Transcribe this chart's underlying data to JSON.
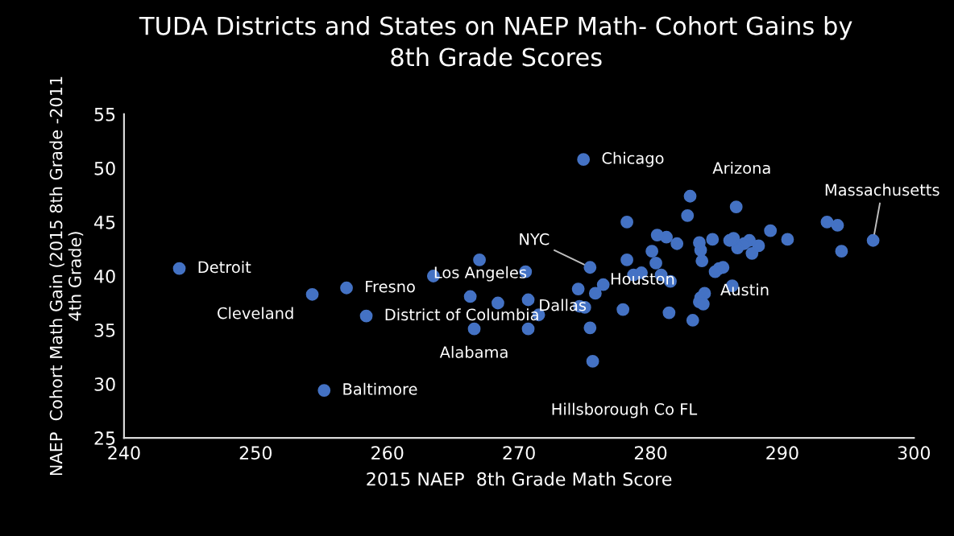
{
  "chart_data": {
    "type": "scatter",
    "title": "TUDA Districts and States on NAEP Math- Cohort Gains by\n8th Grade Scores",
    "xlabel": "2015 NAEP  8th Grade Math Score",
    "ylabel": "NAEP  Cohort Math Gain (2015 8th Grade -2011\n4th Grade)",
    "xlim": [
      240,
      300
    ],
    "xticks": [
      240,
      250,
      260,
      270,
      280,
      290,
      300
    ],
    "ylim": [
      25,
      55
    ],
    "yticks": [
      25,
      30,
      35,
      40,
      45,
      50,
      55
    ],
    "grid": false,
    "marker": "circle",
    "series": [
      {
        "color": "#4472c4",
        "x": [
          244.2,
          254.3,
          256.9,
          258.4,
          255.2,
          263.5,
          267.0,
          266.3,
          268.4,
          266.6,
          270.5,
          270.7,
          270.7,
          274.9,
          283.0,
          286.5,
          282.8,
          278.2,
          293.4,
          294.2,
          296.9,
          294.5,
          290.4,
          289.1,
          288.2,
          287.7,
          287.5,
          287.1,
          286.6,
          286.3,
          286.0,
          284.7,
          283.7,
          283.8,
          283.9,
          282.0,
          281.2,
          280.5,
          280.1,
          278.2,
          280.4,
          275.4,
          278.7,
          279.3,
          280.8,
          281.5,
          285.5,
          285.2,
          284.9,
          286.2,
          276.4,
          274.5,
          275.8,
          274.6,
          275.0,
          277.9,
          271.5,
          275.4,
          275.6,
          284.1,
          283.8,
          283.7,
          284.0,
          281.4,
          283.2
        ],
        "values": [
          40.7,
          38.3,
          38.9,
          36.3,
          29.4,
          40.0,
          41.5,
          38.1,
          37.5,
          35.1,
          40.4,
          37.8,
          35.1,
          50.8,
          47.4,
          46.4,
          45.6,
          45.0,
          45.0,
          44.7,
          43.3,
          42.3,
          43.4,
          44.2,
          42.8,
          42.1,
          43.3,
          43.0,
          42.6,
          43.5,
          43.3,
          43.4,
          43.1,
          42.4,
          41.4,
          43.0,
          43.6,
          43.8,
          42.3,
          41.5,
          41.2,
          40.8,
          40.1,
          40.3,
          40.1,
          39.5,
          40.8,
          40.7,
          40.4,
          39.1,
          39.2,
          38.8,
          38.4,
          37.2,
          37.1,
          36.9,
          36.4,
          35.2,
          32.1,
          38.4,
          38.0,
          37.6,
          37.4,
          36.6,
          35.9
        ]
      }
    ],
    "annotations": [
      {
        "text": "Detroit",
        "x": 244.2,
        "y": 40.7
      },
      {
        "text": "Cleveland",
        "x": 254.3,
        "y": 38.3
      },
      {
        "text": "Fresno",
        "x": 256.9,
        "y": 38.9
      },
      {
        "text": "District of Columbia",
        "x": 258.4,
        "y": 36.3
      },
      {
        "text": "Baltimore",
        "x": 255.2,
        "y": 29.4
      },
      {
        "text": "Los Angeles",
        "x": 263.5,
        "y": 40.0
      },
      {
        "text": "Alabama",
        "x": 266.6,
        "y": 35.1
      },
      {
        "text": "Chicago",
        "x": 274.9,
        "y": 50.8
      },
      {
        "text": "Arizona",
        "x": 283.0,
        "y": 47.4
      },
      {
        "text": "Massachusetts",
        "x": 296.9,
        "y": 43.3
      },
      {
        "text": "NYC",
        "x": 275.4,
        "y": 40.8
      },
      {
        "text": "Dallas",
        "x": 270.8,
        "y": 37.8
      },
      {
        "text": "Houston",
        "x": 276.4,
        "y": 39.2
      },
      {
        "text": "Austin",
        "x": 284.1,
        "y": 38.4
      },
      {
        "text": "Hillsborough Co FL",
        "x": 275.6,
        "y": 32.1
      }
    ]
  }
}
